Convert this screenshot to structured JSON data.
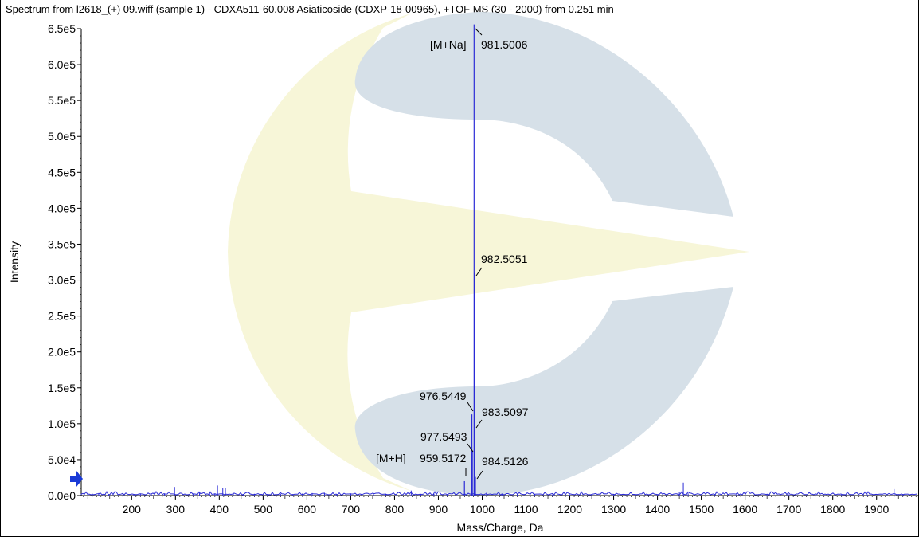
{
  "title": "Spectrum from l2618_(+) 09.wiff (sample 1) - CDXA511-60.008 Asiaticoside (CDXP-18-00965), +TOF MS (30 - 2000) from 0.251 min",
  "colors": {
    "trace": "#2b2bd6",
    "watermark_blue": "#d6e0e8",
    "watermark_yellow": "#f7f6d8",
    "marker": "#1a3ad6"
  },
  "icons": {
    "ref_marker": "right-arrow-icon",
    "watermark": "company-logo-watermark"
  },
  "chart_data": {
    "type": "line",
    "xlabel": "Mass/Charge, Da",
    "ylabel": "Intensity",
    "xlim": [
      85,
      1995
    ],
    "ylim": [
      0,
      650000
    ],
    "x_ticks": [
      200,
      300,
      400,
      500,
      600,
      700,
      800,
      900,
      1000,
      1100,
      1200,
      1300,
      1400,
      1500,
      1600,
      1700,
      1800,
      1900
    ],
    "y_ticks": [
      0,
      50000,
      100000,
      150000,
      200000,
      250000,
      300000,
      350000,
      400000,
      450000,
      500000,
      550000,
      600000,
      650000
    ],
    "y_tick_labels": [
      "0.0e0",
      "5.0e4",
      "1.0e5",
      "1.5e5",
      "2.0e5",
      "2.5e5",
      "3.0e5",
      "3.5e5",
      "4.0e5",
      "4.5e5",
      "5.0e5",
      "5.5e5",
      "6.0e5",
      "6.5e5"
    ],
    "grid": false,
    "major_peaks": [
      {
        "x": 959.5172,
        "y": 20000
      },
      {
        "x": 976.5449,
        "y": 113000
      },
      {
        "x": 977.5493,
        "y": 62000
      },
      {
        "x": 981.5006,
        "y": 656000
      },
      {
        "x": 982.5051,
        "y": 310000
      },
      {
        "x": 983.5097,
        "y": 95000
      },
      {
        "x": 984.5126,
        "y": 26000
      }
    ],
    "minor_peaks": [
      {
        "x": 110,
        "y": 3000
      },
      {
        "x": 125,
        "y": 3500
      },
      {
        "x": 148,
        "y": 2000
      },
      {
        "x": 180,
        "y": 2500
      },
      {
        "x": 205,
        "y": 2000
      },
      {
        "x": 220,
        "y": 3000
      },
      {
        "x": 245,
        "y": 2000
      },
      {
        "x": 275,
        "y": 2500
      },
      {
        "x": 298,
        "y": 12000
      },
      {
        "x": 315,
        "y": 2500
      },
      {
        "x": 340,
        "y": 3000
      },
      {
        "x": 355,
        "y": 4000
      },
      {
        "x": 368,
        "y": 3000
      },
      {
        "x": 378,
        "y": 4500
      },
      {
        "x": 390,
        "y": 3000
      },
      {
        "x": 396,
        "y": 14000
      },
      {
        "x": 408,
        "y": 10000
      },
      {
        "x": 414,
        "y": 11000
      },
      {
        "x": 432,
        "y": 2500
      },
      {
        "x": 455,
        "y": 2000
      },
      {
        "x": 480,
        "y": 2500
      },
      {
        "x": 510,
        "y": 2000
      },
      {
        "x": 540,
        "y": 2500
      },
      {
        "x": 568,
        "y": 2000
      },
      {
        "x": 590,
        "y": 3000
      },
      {
        "x": 612,
        "y": 3500
      },
      {
        "x": 640,
        "y": 4000
      },
      {
        "x": 668,
        "y": 2000
      },
      {
        "x": 700,
        "y": 3000
      },
      {
        "x": 725,
        "y": 2500
      },
      {
        "x": 752,
        "y": 2000
      },
      {
        "x": 780,
        "y": 2500
      },
      {
        "x": 805,
        "y": 2000
      },
      {
        "x": 838,
        "y": 7000
      },
      {
        "x": 860,
        "y": 2000
      },
      {
        "x": 890,
        "y": 2500
      },
      {
        "x": 920,
        "y": 2000
      },
      {
        "x": 1010,
        "y": 4000
      },
      {
        "x": 1045,
        "y": 3000
      },
      {
        "x": 1080,
        "y": 2000
      },
      {
        "x": 1120,
        "y": 2000
      },
      {
        "x": 1160,
        "y": 1500
      },
      {
        "x": 1200,
        "y": 1500
      },
      {
        "x": 1250,
        "y": 1500
      },
      {
        "x": 1300,
        "y": 2000
      },
      {
        "x": 1350,
        "y": 1500
      },
      {
        "x": 1400,
        "y": 1500
      },
      {
        "x": 1450,
        "y": 5000
      },
      {
        "x": 1459,
        "y": 18000
      },
      {
        "x": 1470,
        "y": 3000
      },
      {
        "x": 1530,
        "y": 1500
      },
      {
        "x": 1580,
        "y": 1500
      },
      {
        "x": 1618,
        "y": 4000
      },
      {
        "x": 1650,
        "y": 1500
      },
      {
        "x": 1700,
        "y": 1500
      },
      {
        "x": 1760,
        "y": 1500
      },
      {
        "x": 1820,
        "y": 1500
      },
      {
        "x": 1880,
        "y": 1500
      },
      {
        "x": 1940,
        "y": 9000
      },
      {
        "x": 1960,
        "y": 2000
      }
    ],
    "annotations": [
      {
        "text": "981.5006",
        "x": 981.5006,
        "y": 656000
      },
      {
        "text": "[M+Na]",
        "x": 981.5006,
        "y": 656000
      },
      {
        "text": "982.5051",
        "x": 982.5051,
        "y": 310000
      },
      {
        "text": "976.5449",
        "x": 976.5449,
        "y": 113000
      },
      {
        "text": "983.5097",
        "x": 983.5097,
        "y": 95000
      },
      {
        "text": "977.5493",
        "x": 977.5493,
        "y": 62000
      },
      {
        "text": "959.5172",
        "x": 959.5172,
        "y": 20000
      },
      {
        "text": "[M+H]",
        "x": 959.5172,
        "y": 20000
      },
      {
        "text": "984.5126",
        "x": 984.5126,
        "y": 26000
      }
    ]
  }
}
